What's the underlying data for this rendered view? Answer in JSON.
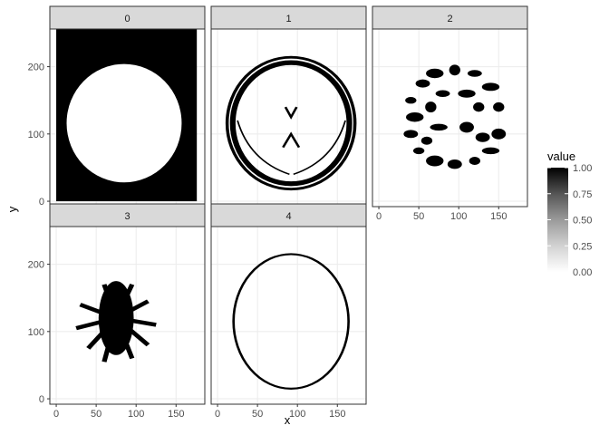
{
  "chart_data": {
    "type": "heatmap",
    "facet_variable_values": [
      "0",
      "1",
      "2",
      "3",
      "4"
    ],
    "xlabel": "x",
    "ylabel": "y",
    "xlim": [
      -8,
      186
    ],
    "ylim": [
      -8,
      256
    ],
    "x_ticks": [
      0,
      50,
      100,
      150
    ],
    "y_ticks": [
      0,
      100,
      200
    ],
    "legend": {
      "title": "value",
      "placement": "right",
      "range": [
        0,
        1
      ],
      "ticks": [
        "0.00",
        "0.25",
        "0.50",
        "0.75",
        "1.00"
      ],
      "color_low": "#ffffff",
      "color_high": "#000000"
    },
    "panels": [
      {
        "label": "0",
        "content": "binary mask: value 1 background over x 0-176, y 0-256, value 0 inside a head-shaped disc centred near (85,115)"
      },
      {
        "label": "1",
        "content": "skull ring and ventricle outline, mostly 0 with thin 1-valued contours"
      },
      {
        "label": "2",
        "content": "grey-matter gyri pattern, 1-valued blobs inside brain outline"
      },
      {
        "label": "3",
        "content": "white-matter branching pattern, 1-valued region centred near (75,120)"
      },
      {
        "label": "4",
        "content": "thin 1-valued elliptical skull outline centred near (92,115)"
      }
    ]
  },
  "colors": {
    "panel_bg": "#ffffff",
    "grid": "#ebebeb",
    "strip_bg": "#d9d9d9",
    "strip_border": "#333333",
    "panel_border": "#333333"
  }
}
